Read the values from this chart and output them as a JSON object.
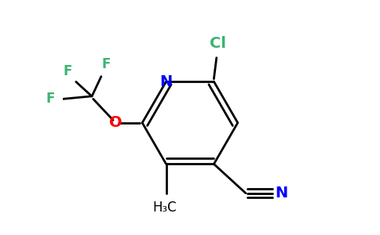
{
  "bg_color": "#ffffff",
  "atom_colors": {
    "C": "#000000",
    "N": "#0000ff",
    "O": "#ff0000",
    "F": "#3cb371",
    "Cl": "#3cb371"
  },
  "bond_color": "#000000",
  "bond_width": 2.0,
  "figsize": [
    4.84,
    3.0
  ],
  "dpi": 100
}
